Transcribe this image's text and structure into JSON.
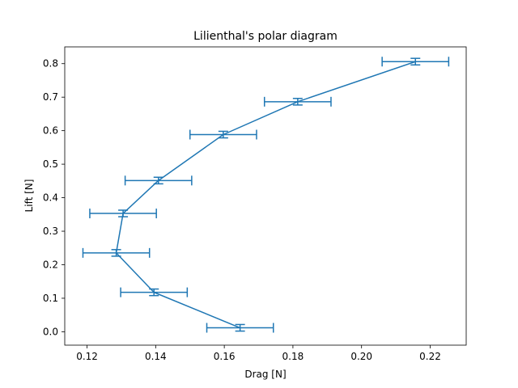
{
  "chart_data": {
    "type": "line",
    "title": "Lilienthal's polar diagram",
    "xlabel": "Drag [N]",
    "ylabel": "Lift [N]",
    "xlim": [
      0.1135,
      0.2305
    ],
    "ylim": [
      -0.04,
      0.85
    ],
    "xticks": [
      0.12,
      0.14,
      0.16,
      0.18,
      0.2,
      0.22
    ],
    "yticks": [
      0.0,
      0.1,
      0.2,
      0.3,
      0.4,
      0.5,
      0.6,
      0.7,
      0.8
    ],
    "xtick_labels": [
      "0.12",
      "0.14",
      "0.16",
      "0.18",
      "0.20",
      "0.22"
    ],
    "ytick_labels": [
      "0.0",
      "0.1",
      "0.2",
      "0.3",
      "0.4",
      "0.5",
      "0.6",
      "0.7",
      "0.8"
    ],
    "grid": false,
    "legend": "none",
    "color": "#1f77b4",
    "series": [
      {
        "x": [
          0.1646,
          0.1395,
          0.1285,
          0.1305,
          0.1408,
          0.1597,
          0.1814,
          0.2157
        ],
        "y": [
          0.0118,
          0.1177,
          0.2353,
          0.353,
          0.4512,
          0.5883,
          0.6864,
          0.806
        ],
        "xerr": [
          0.0097,
          0.0097,
          0.0097,
          0.0097,
          0.0097,
          0.0097,
          0.0097,
          0.0097
        ],
        "yerr": [
          0.0098,
          0.0098,
          0.0098,
          0.0098,
          0.0098,
          0.0098,
          0.0098,
          0.0098
        ]
      }
    ]
  }
}
